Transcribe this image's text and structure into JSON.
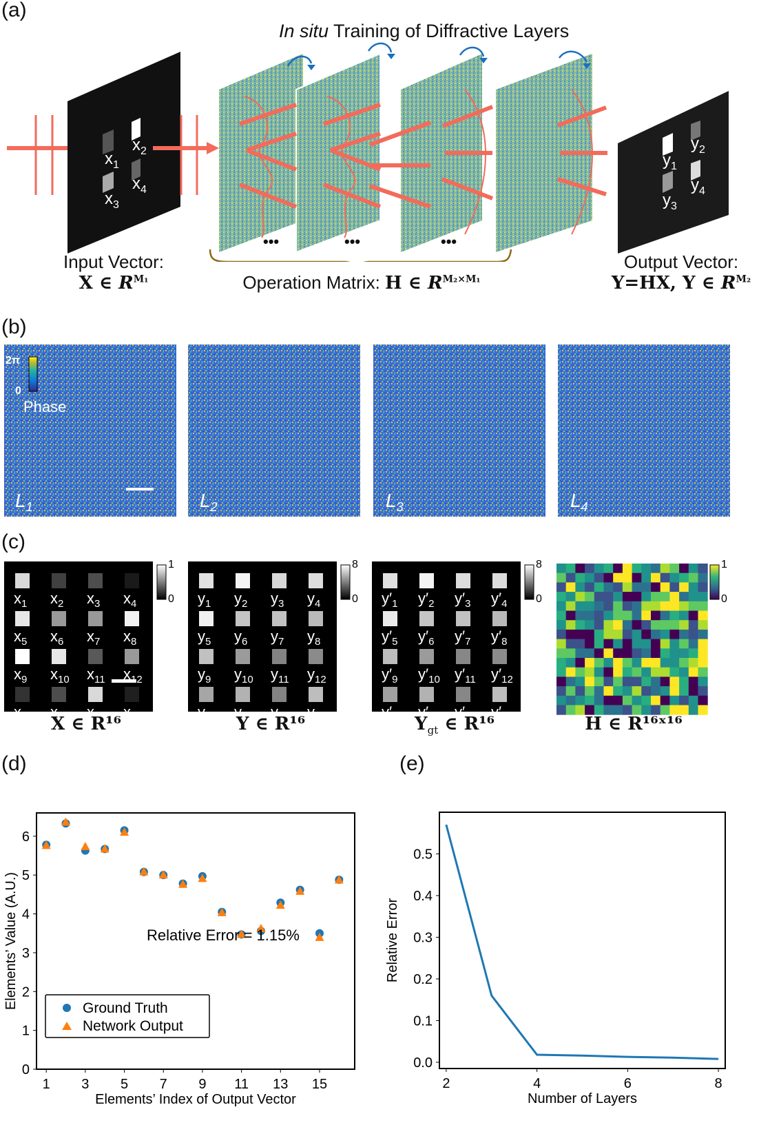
{
  "panel_a": {
    "label": "(a)",
    "title_italic": "In situ",
    "title_rest": " Training of Diffractive Layers",
    "input_labels": [
      "x1",
      "x2",
      "x3",
      "x4"
    ],
    "input_sub": [
      "1",
      "2",
      "3",
      "4"
    ],
    "output_sub": [
      "1",
      "2",
      "3",
      "4"
    ],
    "input_caption_line1": "Input Vector:",
    "input_caption_line2": "X ∈ R^M₁",
    "op_caption": "Operation Matrix: H ∈ R^(M₂×M₁)",
    "output_caption_line1": "Output Vector:",
    "output_caption_line2": "Y=HX, Y ∈ R^M₂",
    "ellipsis": "•••",
    "colors": {
      "beam": "#f26b5b",
      "arrow_blue": "#1a6fbf",
      "brace": "#8a6a10"
    }
  },
  "panel_b": {
    "label": "(b)",
    "layers": [
      "L1",
      "L2",
      "L3",
      "L4"
    ],
    "layer_subs": [
      "1",
      "2",
      "3",
      "4"
    ],
    "colorbar_max": "2π",
    "colorbar_min": "0",
    "colorbar_title": "Phase"
  },
  "panel_c": {
    "label": "(c)",
    "x_values": [
      0.85,
      0.25,
      0.3,
      0.1,
      0.9,
      0.6,
      0.6,
      0.95,
      1.0,
      0.9,
      0.35,
      0.6,
      0.2,
      0.3,
      0.85,
      0.12
    ],
    "y_values": [
      5.8,
      6.3,
      5.6,
      5.7,
      6.2,
      5.1,
      5.0,
      4.8,
      5.0,
      4.0,
      3.4,
      3.6,
      4.3,
      4.6,
      3.4,
      4.9
    ],
    "ygt_values": [
      5.8,
      6.3,
      5.7,
      5.7,
      6.1,
      5.1,
      5.0,
      4.8,
      4.9,
      4.0,
      3.5,
      3.6,
      4.2,
      4.6,
      3.5,
      4.9
    ],
    "x_colorbar": {
      "max": "1",
      "min": "0"
    },
    "y_colorbar": {
      "max": "8",
      "min": "0"
    },
    "ygt_colorbar": {
      "max": "8",
      "min": "0"
    },
    "h_colorbar": {
      "max": "1",
      "min": "0"
    },
    "captions": {
      "x": "X ∈ R¹⁶",
      "y": "Y ∈ R¹⁶",
      "ygt": "Y",
      "ygt_sub": "gt",
      "ygt_rest": " ∈ R¹⁶",
      "h": "H ∈ R¹⁶ˣ¹⁶"
    }
  },
  "chart_data": [
    {
      "panel": "(d)",
      "type": "scatter",
      "title": "",
      "xlabel": "Elements’ Index of Output Vector",
      "ylabel": "Elements’ Value (A.U.)",
      "xlim": [
        0.5,
        16.8
      ],
      "ylim": [
        0,
        6.6
      ],
      "xticks": [
        1,
        3,
        5,
        7,
        9,
        11,
        13,
        15
      ],
      "yticks": [
        0,
        1,
        2,
        3,
        4,
        5,
        6
      ],
      "annotation": "Relative Error = 1.15%",
      "legend": {
        "placement": "lower-left",
        "entries": [
          "Ground Truth",
          "Network Output"
        ]
      },
      "x": [
        1,
        2,
        3,
        4,
        5,
        6,
        7,
        8,
        9,
        10,
        11,
        12,
        13,
        14,
        15,
        16
      ],
      "series": [
        {
          "name": "Ground Truth",
          "marker": "circle",
          "color": "#1f77b4",
          "values": [
            5.78,
            6.33,
            5.63,
            5.67,
            6.15,
            5.08,
            5.0,
            4.78,
            4.97,
            4.05,
            3.47,
            3.56,
            4.29,
            4.62,
            3.5,
            4.88
          ]
        },
        {
          "name": "Network Output",
          "marker": "triangle",
          "color": "#ff7f0e",
          "values": [
            5.76,
            6.36,
            5.73,
            5.67,
            6.1,
            5.08,
            5.0,
            4.76,
            4.91,
            4.03,
            3.47,
            3.62,
            4.22,
            4.58,
            3.39,
            4.87
          ]
        }
      ]
    },
    {
      "panel": "(e)",
      "type": "line",
      "title": "",
      "xlabel": "Number of Layers",
      "ylabel": "Relative Error",
      "xlim": [
        1.85,
        8.15
      ],
      "ylim": [
        -0.015,
        0.6
      ],
      "xticks": [
        2,
        4,
        6,
        8
      ],
      "yticks": [
        0.0,
        0.1,
        0.2,
        0.3,
        0.4,
        0.5
      ],
      "x": [
        2,
        3,
        4,
        5,
        6,
        7,
        8
      ],
      "series": [
        {
          "name": "Relative Error",
          "color": "#1f77b4",
          "values": [
            0.57,
            0.16,
            0.018,
            0.016,
            0.013,
            0.011,
            0.008
          ]
        }
      ]
    }
  ]
}
